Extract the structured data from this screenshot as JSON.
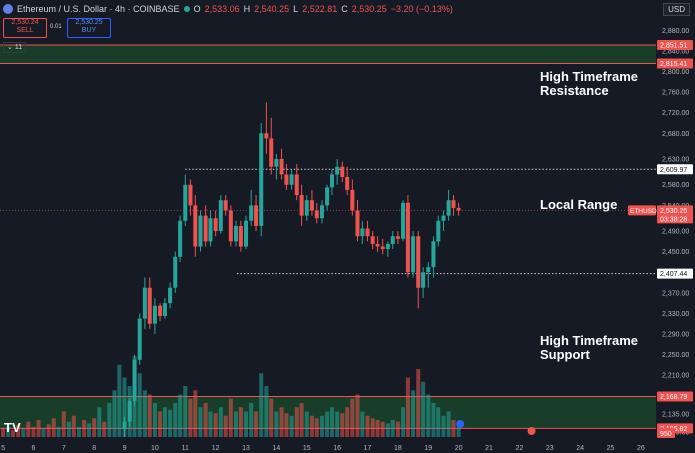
{
  "header": {
    "title": "Ethereum / U.S. Dollar · 4h · COINBASE",
    "o_label": "O",
    "o_value": "2,533.06",
    "h_label": "H",
    "h_value": "2,540.25",
    "l_label": "L",
    "l_value": "2,522.81",
    "c_label": "C",
    "c_value": "2,530.25",
    "change": "−3.20 (−0.13%)"
  },
  "trade": {
    "sell_price": "2,530.24",
    "sell_label": "SELL",
    "spread": "0.01",
    "buy_price": "2,530.25",
    "buy_label": "BUY"
  },
  "indicator_toggle": "11",
  "currency": "USD",
  "annotations": {
    "resistance": "High Timeframe Resistance",
    "range": "Local Range",
    "support": "High Timeframe Support"
  },
  "logo_text": "TV",
  "colors": {
    "up": "#26a69a",
    "down": "#ef5350",
    "bg": "#161a25",
    "zone": "#1c5b2e",
    "line": "#ef5350"
  },
  "chart_data": {
    "type": "candlestick",
    "symbol": "ETHUSD",
    "timeframe": "4h",
    "ylim": [
      2090,
      2900
    ],
    "y_ticks": [
      2880,
      2840,
      2800,
      2760,
      2720,
      2680,
      2630,
      2580,
      2540,
      2490,
      2450,
      2410,
      2370,
      2330,
      2290,
      2250,
      2210,
      2170,
      2135,
      2100
    ],
    "x_ticks": [
      "5",
      "6",
      "7",
      "8",
      "9",
      "10",
      "11",
      "12",
      "13",
      "14",
      "15",
      "16",
      "17",
      "18",
      "19",
      "20",
      "21",
      "22",
      "23",
      "24",
      "25",
      "26"
    ],
    "x_tick_values": [
      5,
      6,
      7,
      8,
      9,
      10,
      11,
      12,
      13,
      14,
      15,
      16,
      17,
      18,
      19,
      20,
      21,
      22,
      23,
      24,
      25,
      26
    ],
    "price_labels": [
      {
        "value": 2851.51,
        "text": "2,851.51",
        "kind": "level"
      },
      {
        "value": 2815.41,
        "text": "2,815.41",
        "kind": "level"
      },
      {
        "value": 2609.97,
        "text": "2,609.97",
        "kind": "range"
      },
      {
        "value": 2530.25,
        "text": "2,530.25",
        "kind": "last",
        "sub": "03:38:28",
        "tag": "ETHUSD"
      },
      {
        "value": 2407.44,
        "text": "2,407.44",
        "kind": "range"
      },
      {
        "value": 2168.79,
        "text": "2,168.79",
        "kind": "level"
      },
      {
        "value": 2106.82,
        "text": "2,106.82",
        "kind": "level"
      }
    ],
    "zones": [
      {
        "name": "resistance",
        "from": 2815.41,
        "to": 2851.51
      },
      {
        "name": "support",
        "from": 2106.82,
        "to": 2168.79
      }
    ],
    "range": {
      "high": 2609.97,
      "low": 2407.44,
      "start_x": 11.0,
      "high_end_x": 20.7,
      "low_end_x": 20.7,
      "low_start_x": 12.7
    },
    "volume_badge": "950",
    "candles": [
      {
        "x": 9.0,
        "o": 2105,
        "h": 2130,
        "l": 2090,
        "c": 2120
      },
      {
        "x": 9.17,
        "o": 2120,
        "h": 2165,
        "l": 2110,
        "c": 2160
      },
      {
        "x": 9.33,
        "o": 2160,
        "h": 2250,
        "l": 2150,
        "c": 2240
      },
      {
        "x": 9.5,
        "o": 2240,
        "h": 2330,
        "l": 2230,
        "c": 2320
      },
      {
        "x": 9.67,
        "o": 2320,
        "h": 2400,
        "l": 2300,
        "c": 2380
      },
      {
        "x": 9.83,
        "o": 2380,
        "h": 2400,
        "l": 2300,
        "c": 2310
      },
      {
        "x": 10.0,
        "o": 2310,
        "h": 2360,
        "l": 2290,
        "c": 2345
      },
      {
        "x": 10.17,
        "o": 2345,
        "h": 2350,
        "l": 2315,
        "c": 2325
      },
      {
        "x": 10.33,
        "o": 2325,
        "h": 2360,
        "l": 2320,
        "c": 2350
      },
      {
        "x": 10.5,
        "o": 2350,
        "h": 2390,
        "l": 2340,
        "c": 2380
      },
      {
        "x": 10.67,
        "o": 2380,
        "h": 2450,
        "l": 2370,
        "c": 2440
      },
      {
        "x": 10.83,
        "o": 2440,
        "h": 2520,
        "l": 2430,
        "c": 2510
      },
      {
        "x": 11.0,
        "o": 2510,
        "h": 2600,
        "l": 2500,
        "c": 2580
      },
      {
        "x": 11.17,
        "o": 2580,
        "h": 2590,
        "l": 2520,
        "c": 2540
      },
      {
        "x": 11.33,
        "o": 2540,
        "h": 2560,
        "l": 2440,
        "c": 2460
      },
      {
        "x": 11.5,
        "o": 2460,
        "h": 2530,
        "l": 2450,
        "c": 2520
      },
      {
        "x": 11.67,
        "o": 2520,
        "h": 2540,
        "l": 2460,
        "c": 2470
      },
      {
        "x": 11.83,
        "o": 2470,
        "h": 2530,
        "l": 2460,
        "c": 2515
      },
      {
        "x": 12.0,
        "o": 2515,
        "h": 2530,
        "l": 2480,
        "c": 2490
      },
      {
        "x": 12.17,
        "o": 2490,
        "h": 2560,
        "l": 2485,
        "c": 2550
      },
      {
        "x": 12.33,
        "o": 2550,
        "h": 2560,
        "l": 2520,
        "c": 2530
      },
      {
        "x": 12.5,
        "o": 2530,
        "h": 2540,
        "l": 2460,
        "c": 2470
      },
      {
        "x": 12.67,
        "o": 2470,
        "h": 2510,
        "l": 2460,
        "c": 2500
      },
      {
        "x": 12.83,
        "o": 2500,
        "h": 2510,
        "l": 2450,
        "c": 2460
      },
      {
        "x": 13.0,
        "o": 2460,
        "h": 2520,
        "l": 2455,
        "c": 2510
      },
      {
        "x": 13.17,
        "o": 2510,
        "h": 2570,
        "l": 2500,
        "c": 2540
      },
      {
        "x": 13.33,
        "o": 2540,
        "h": 2560,
        "l": 2490,
        "c": 2500
      },
      {
        "x": 13.5,
        "o": 2500,
        "h": 2700,
        "l": 2480,
        "c": 2680
      },
      {
        "x": 13.67,
        "o": 2680,
        "h": 2740,
        "l": 2640,
        "c": 2670
      },
      {
        "x": 13.83,
        "o": 2670,
        "h": 2710,
        "l": 2600,
        "c": 2615
      },
      {
        "x": 14.0,
        "o": 2615,
        "h": 2640,
        "l": 2590,
        "c": 2630
      },
      {
        "x": 14.17,
        "o": 2630,
        "h": 2650,
        "l": 2590,
        "c": 2600
      },
      {
        "x": 14.33,
        "o": 2600,
        "h": 2620,
        "l": 2570,
        "c": 2580
      },
      {
        "x": 14.5,
        "o": 2580,
        "h": 2610,
        "l": 2570,
        "c": 2600
      },
      {
        "x": 14.67,
        "o": 2600,
        "h": 2620,
        "l": 2550,
        "c": 2560
      },
      {
        "x": 14.83,
        "o": 2560,
        "h": 2580,
        "l": 2500,
        "c": 2520
      },
      {
        "x": 15.0,
        "o": 2520,
        "h": 2560,
        "l": 2510,
        "c": 2550
      },
      {
        "x": 15.17,
        "o": 2550,
        "h": 2570,
        "l": 2520,
        "c": 2530
      },
      {
        "x": 15.33,
        "o": 2530,
        "h": 2545,
        "l": 2505,
        "c": 2515
      },
      {
        "x": 15.5,
        "o": 2515,
        "h": 2550,
        "l": 2505,
        "c": 2540
      },
      {
        "x": 15.67,
        "o": 2540,
        "h": 2580,
        "l": 2530,
        "c": 2575
      },
      {
        "x": 15.83,
        "o": 2575,
        "h": 2610,
        "l": 2560,
        "c": 2600
      },
      {
        "x": 16.0,
        "o": 2600,
        "h": 2630,
        "l": 2580,
        "c": 2615
      },
      {
        "x": 16.17,
        "o": 2615,
        "h": 2625,
        "l": 2585,
        "c": 2595
      },
      {
        "x": 16.33,
        "o": 2595,
        "h": 2615,
        "l": 2560,
        "c": 2570
      },
      {
        "x": 16.5,
        "o": 2570,
        "h": 2590,
        "l": 2520,
        "c": 2530
      },
      {
        "x": 16.67,
        "o": 2530,
        "h": 2550,
        "l": 2470,
        "c": 2480
      },
      {
        "x": 16.83,
        "o": 2480,
        "h": 2510,
        "l": 2465,
        "c": 2495
      },
      {
        "x": 17.0,
        "o": 2495,
        "h": 2510,
        "l": 2470,
        "c": 2480
      },
      {
        "x": 17.17,
        "o": 2480,
        "h": 2490,
        "l": 2455,
        "c": 2465
      },
      {
        "x": 17.33,
        "o": 2465,
        "h": 2480,
        "l": 2450,
        "c": 2460
      },
      {
        "x": 17.5,
        "o": 2460,
        "h": 2475,
        "l": 2445,
        "c": 2455
      },
      {
        "x": 17.67,
        "o": 2455,
        "h": 2470,
        "l": 2440,
        "c": 2465
      },
      {
        "x": 17.83,
        "o": 2465,
        "h": 2490,
        "l": 2455,
        "c": 2480
      },
      {
        "x": 18.0,
        "o": 2480,
        "h": 2490,
        "l": 2465,
        "c": 2475
      },
      {
        "x": 18.17,
        "o": 2475,
        "h": 2550,
        "l": 2470,
        "c": 2545
      },
      {
        "x": 18.33,
        "o": 2545,
        "h": 2560,
        "l": 2400,
        "c": 2410
      },
      {
        "x": 18.5,
        "o": 2410,
        "h": 2490,
        "l": 2400,
        "c": 2480
      },
      {
        "x": 18.67,
        "o": 2480,
        "h": 2490,
        "l": 2340,
        "c": 2380
      },
      {
        "x": 18.83,
        "o": 2380,
        "h": 2420,
        "l": 2360,
        "c": 2410
      },
      {
        "x": 19.0,
        "o": 2410,
        "h": 2430,
        "l": 2380,
        "c": 2420
      },
      {
        "x": 19.17,
        "o": 2420,
        "h": 2480,
        "l": 2400,
        "c": 2470
      },
      {
        "x": 19.33,
        "o": 2470,
        "h": 2520,
        "l": 2460,
        "c": 2510
      },
      {
        "x": 19.5,
        "o": 2510,
        "h": 2530,
        "l": 2490,
        "c": 2520
      },
      {
        "x": 19.67,
        "o": 2520,
        "h": 2570,
        "l": 2510,
        "c": 2550
      },
      {
        "x": 19.83,
        "o": 2550,
        "h": 2560,
        "l": 2520,
        "c": 2535
      },
      {
        "x": 20.0,
        "o": 2535,
        "h": 2545,
        "l": 2520,
        "c": 2530
      }
    ],
    "volumes": [
      {
        "x": 5.0,
        "v": 0.1,
        "up": false
      },
      {
        "x": 5.17,
        "v": 0.12,
        "up": true
      },
      {
        "x": 5.33,
        "v": 0.08,
        "up": false
      },
      {
        "x": 5.5,
        "v": 0.14,
        "up": false
      },
      {
        "x": 5.67,
        "v": 0.1,
        "up": true
      },
      {
        "x": 5.83,
        "v": 0.18,
        "up": false
      },
      {
        "x": 6.0,
        "v": 0.12,
        "up": false
      },
      {
        "x": 6.17,
        "v": 0.2,
        "up": false
      },
      {
        "x": 6.33,
        "v": 0.1,
        "up": true
      },
      {
        "x": 6.5,
        "v": 0.15,
        "up": false
      },
      {
        "x": 6.67,
        "v": 0.22,
        "up": false
      },
      {
        "x": 6.83,
        "v": 0.12,
        "up": true
      },
      {
        "x": 7.0,
        "v": 0.3,
        "up": false
      },
      {
        "x": 7.17,
        "v": 0.18,
        "up": true
      },
      {
        "x": 7.33,
        "v": 0.25,
        "up": false
      },
      {
        "x": 7.5,
        "v": 0.12,
        "up": true
      },
      {
        "x": 7.67,
        "v": 0.2,
        "up": false
      },
      {
        "x": 7.83,
        "v": 0.16,
        "up": true
      },
      {
        "x": 8.0,
        "v": 0.22,
        "up": false
      },
      {
        "x": 8.17,
        "v": 0.35,
        "up": true
      },
      {
        "x": 8.33,
        "v": 0.18,
        "up": false
      },
      {
        "x": 8.5,
        "v": 0.4,
        "up": true
      },
      {
        "x": 8.67,
        "v": 0.55,
        "up": true
      },
      {
        "x": 8.83,
        "v": 0.85,
        "up": true
      },
      {
        "x": 9.0,
        "v": 0.7,
        "up": true
      },
      {
        "x": 9.17,
        "v": 0.6,
        "up": true
      },
      {
        "x": 9.33,
        "v": 0.95,
        "up": true
      },
      {
        "x": 9.5,
        "v": 0.75,
        "up": true
      },
      {
        "x": 9.67,
        "v": 0.55,
        "up": true
      },
      {
        "x": 9.83,
        "v": 0.5,
        "up": false
      },
      {
        "x": 10.0,
        "v": 0.4,
        "up": true
      },
      {
        "x": 10.17,
        "v": 0.3,
        "up": false
      },
      {
        "x": 10.33,
        "v": 0.35,
        "up": true
      },
      {
        "x": 10.5,
        "v": 0.32,
        "up": true
      },
      {
        "x": 10.67,
        "v": 0.4,
        "up": true
      },
      {
        "x": 10.83,
        "v": 0.5,
        "up": true
      },
      {
        "x": 11.0,
        "v": 0.6,
        "up": true
      },
      {
        "x": 11.17,
        "v": 0.45,
        "up": false
      },
      {
        "x": 11.33,
        "v": 0.55,
        "up": false
      },
      {
        "x": 11.5,
        "v": 0.35,
        "up": true
      },
      {
        "x": 11.67,
        "v": 0.4,
        "up": false
      },
      {
        "x": 11.83,
        "v": 0.3,
        "up": true
      },
      {
        "x": 12.0,
        "v": 0.28,
        "up": false
      },
      {
        "x": 12.17,
        "v": 0.35,
        "up": true
      },
      {
        "x": 12.33,
        "v": 0.25,
        "up": false
      },
      {
        "x": 12.5,
        "v": 0.45,
        "up": false
      },
      {
        "x": 12.67,
        "v": 0.3,
        "up": true
      },
      {
        "x": 12.83,
        "v": 0.35,
        "up": false
      },
      {
        "x": 13.0,
        "v": 0.3,
        "up": true
      },
      {
        "x": 13.17,
        "v": 0.4,
        "up": true
      },
      {
        "x": 13.33,
        "v": 0.3,
        "up": false
      },
      {
        "x": 13.5,
        "v": 0.75,
        "up": true
      },
      {
        "x": 13.67,
        "v": 0.6,
        "up": true
      },
      {
        "x": 13.83,
        "v": 0.45,
        "up": false
      },
      {
        "x": 14.0,
        "v": 0.3,
        "up": true
      },
      {
        "x": 14.17,
        "v": 0.35,
        "up": false
      },
      {
        "x": 14.33,
        "v": 0.28,
        "up": false
      },
      {
        "x": 14.5,
        "v": 0.25,
        "up": true
      },
      {
        "x": 14.67,
        "v": 0.35,
        "up": false
      },
      {
        "x": 14.83,
        "v": 0.4,
        "up": false
      },
      {
        "x": 15.0,
        "v": 0.3,
        "up": true
      },
      {
        "x": 15.17,
        "v": 0.25,
        "up": false
      },
      {
        "x": 15.33,
        "v": 0.22,
        "up": false
      },
      {
        "x": 15.5,
        "v": 0.25,
        "up": true
      },
      {
        "x": 15.67,
        "v": 0.3,
        "up": true
      },
      {
        "x": 15.83,
        "v": 0.35,
        "up": true
      },
      {
        "x": 16.0,
        "v": 0.3,
        "up": true
      },
      {
        "x": 16.17,
        "v": 0.28,
        "up": false
      },
      {
        "x": 16.33,
        "v": 0.35,
        "up": false
      },
      {
        "x": 16.5,
        "v": 0.45,
        "up": false
      },
      {
        "x": 16.67,
        "v": 0.5,
        "up": false
      },
      {
        "x": 16.83,
        "v": 0.3,
        "up": true
      },
      {
        "x": 17.0,
        "v": 0.25,
        "up": false
      },
      {
        "x": 17.17,
        "v": 0.22,
        "up": false
      },
      {
        "x": 17.33,
        "v": 0.2,
        "up": false
      },
      {
        "x": 17.5,
        "v": 0.18,
        "up": false
      },
      {
        "x": 17.67,
        "v": 0.16,
        "up": true
      },
      {
        "x": 17.83,
        "v": 0.2,
        "up": true
      },
      {
        "x": 18.0,
        "v": 0.18,
        "up": false
      },
      {
        "x": 18.17,
        "v": 0.35,
        "up": true
      },
      {
        "x": 18.33,
        "v": 0.7,
        "up": false
      },
      {
        "x": 18.5,
        "v": 0.55,
        "up": true
      },
      {
        "x": 18.67,
        "v": 0.8,
        "up": false
      },
      {
        "x": 18.83,
        "v": 0.65,
        "up": true
      },
      {
        "x": 19.0,
        "v": 0.5,
        "up": true
      },
      {
        "x": 19.17,
        "v": 0.4,
        "up": true
      },
      {
        "x": 19.33,
        "v": 0.35,
        "up": true
      },
      {
        "x": 19.5,
        "v": 0.25,
        "up": true
      },
      {
        "x": 19.67,
        "v": 0.3,
        "up": true
      },
      {
        "x": 19.83,
        "v": 0.2,
        "up": false
      },
      {
        "x": 20.0,
        "v": 0.12,
        "up": true
      }
    ]
  }
}
